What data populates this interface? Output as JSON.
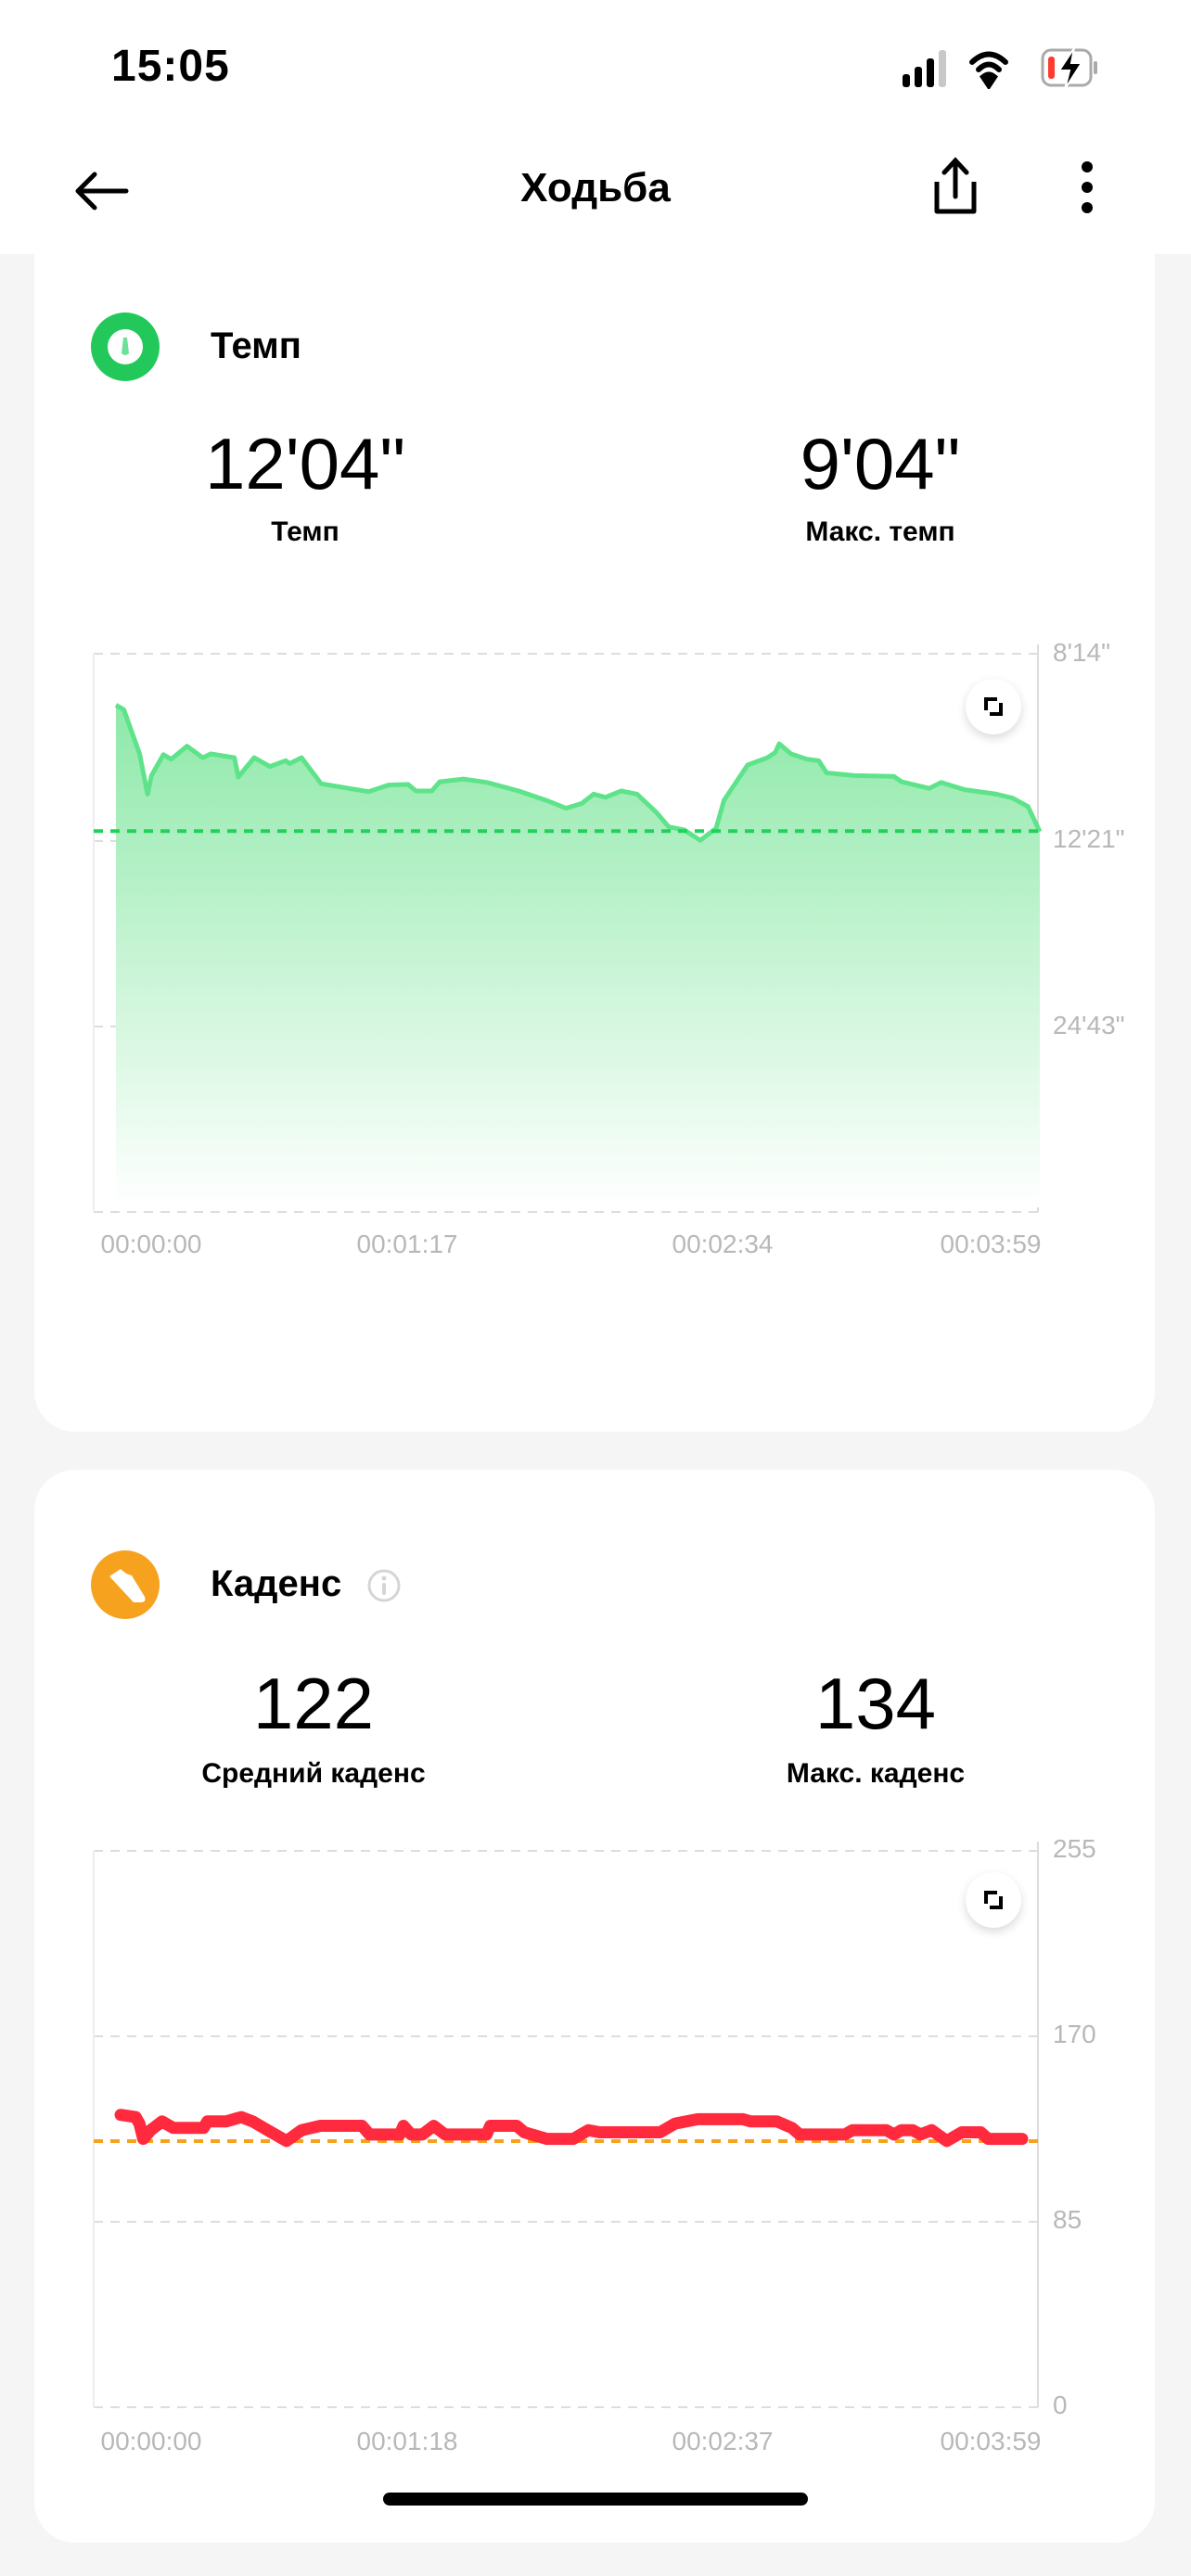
{
  "status_bar": {
    "time": "15:05",
    "icons": [
      "cellular-signal-icon",
      "wifi-icon",
      "battery-charging-icon"
    ],
    "battery_color": "#ff3b30"
  },
  "header": {
    "title": "Ходьба",
    "back_icon": "arrow-left-icon",
    "share_icon": "share-icon",
    "more_icon": "more-vertical-icon"
  },
  "pace_card": {
    "title": "Темп",
    "icon": "speedometer-icon",
    "icon_color": "#22c95a",
    "avg_value": "12'04\"",
    "avg_label": "Темп",
    "max_value": "9'04\"",
    "max_label": "Макс. темп"
  },
  "cadence_card": {
    "title": "Каденс",
    "icon": "shoe-icon",
    "info_icon": "info-icon",
    "icon_color": "#f6a21e",
    "avg_value": "122",
    "avg_label": "Средний каденс",
    "max_value": "134",
    "max_label": "Макс. каденс"
  },
  "chart_data": [
    {
      "type": "area",
      "y_scale": "reciprocal (pace, faster at top)",
      "y_tick_labels": [
        "8'14\"",
        "12'21\"",
        "24'43\""
      ],
      "x_tick_labels": [
        "00:00:00",
        "00:01:17",
        "00:02:34",
        "00:03:59"
      ],
      "x_unit_seconds": true,
      "average_line": "12'04\"",
      "line_color": "#5ee38a",
      "average_color": "#1fd35a",
      "grid": true,
      "points": [
        [
          0,
          "9'04\""
        ],
        [
          2,
          "9'09\""
        ],
        [
          6,
          "10'02\""
        ],
        [
          8,
          "11'00\""
        ],
        [
          9,
          "10'32\""
        ],
        [
          12,
          "10'03\""
        ],
        [
          14,
          "10'09\""
        ],
        [
          18,
          "9'52\""
        ],
        [
          22,
          "10'07\""
        ],
        [
          24,
          "10'02\""
        ],
        [
          30,
          "10'07\""
        ],
        [
          31,
          "10'34\""
        ],
        [
          35,
          "10'07\""
        ],
        [
          39,
          "10'19\""
        ],
        [
          43,
          "10'11\""
        ],
        [
          44,
          "10'15\""
        ],
        [
          47,
          "10'07\""
        ],
        [
          52,
          "10'44\""
        ],
        [
          59,
          "10'51\""
        ],
        [
          64,
          "10'56\""
        ],
        [
          69,
          "10'46\""
        ],
        [
          74,
          "10'45\""
        ],
        [
          76,
          "10'55\""
        ],
        [
          80,
          "10'55\""
        ],
        [
          82,
          "10'41\""
        ],
        [
          88,
          "10'37\""
        ],
        [
          94,
          "10'42\""
        ],
        [
          102,
          "10'55\""
        ],
        [
          109,
          "11'10\""
        ],
        [
          114,
          "11'23\""
        ],
        [
          118,
          "11'15\""
        ],
        [
          121,
          "11'00\""
        ],
        [
          124,
          "11'05\""
        ],
        [
          128,
          "10'55\""
        ],
        [
          132,
          "11'00\""
        ],
        [
          137,
          "11'31\""
        ],
        [
          140,
          "11'56\""
        ],
        [
          144,
          "12'02\""
        ],
        [
          148,
          "12'22\""
        ],
        [
          152,
          "11'59\""
        ],
        [
          154,
          "11'10\""
        ],
        [
          160,
          "10'17\""
        ],
        [
          165,
          "10'07\""
        ],
        [
          167,
          "10'00\""
        ],
        [
          168,
          "9'49\""
        ],
        [
          171,
          "10'02\""
        ],
        [
          175,
          "10'09\""
        ],
        [
          178,
          "10'11\""
        ],
        [
          180,
          "10'28\""
        ],
        [
          187,
          "10'32\""
        ],
        [
          197,
          "10'33\""
        ],
        [
          199,
          "10'41\""
        ],
        [
          206,
          "10'51\""
        ],
        [
          209,
          "10'42\""
        ],
        [
          215,
          "10'53\""
        ],
        [
          223,
          "11'00\""
        ],
        [
          227,
          "11'06\""
        ],
        [
          231,
          "11'20\""
        ],
        [
          234,
          "12'05\""
        ]
      ]
    },
    {
      "type": "line",
      "ylim": [
        0,
        255
      ],
      "y_tick_labels": [
        "255",
        "170",
        "85",
        "0"
      ],
      "x_tick_labels": [
        "00:00:00",
        "00:01:18",
        "00:02:37",
        "00:03:59"
      ],
      "x_unit_seconds": true,
      "average_line": 122,
      "line_color": "#ff2a3d",
      "average_color": "#f6a21e",
      "grid": true,
      "points": [
        [
          0,
          134
        ],
        [
          4,
          133
        ],
        [
          5,
          130
        ],
        [
          6,
          123
        ],
        [
          8,
          127
        ],
        [
          11,
          131
        ],
        [
          14,
          128
        ],
        [
          22,
          128
        ],
        [
          23,
          131
        ],
        [
          28,
          131
        ],
        [
          32,
          133
        ],
        [
          35,
          131
        ],
        [
          39,
          127
        ],
        [
          44,
          122
        ],
        [
          48,
          127
        ],
        [
          53,
          129
        ],
        [
          59,
          129
        ],
        [
          64,
          129
        ],
        [
          66,
          125
        ],
        [
          74,
          125
        ],
        [
          75,
          129
        ],
        [
          77,
          125
        ],
        [
          80,
          125
        ],
        [
          83,
          129
        ],
        [
          86,
          125
        ],
        [
          97,
          125
        ],
        [
          98,
          129
        ],
        [
          105,
          129
        ],
        [
          107,
          126
        ],
        [
          113,
          123
        ],
        [
          120,
          123
        ],
        [
          124,
          127
        ],
        [
          127,
          126
        ],
        [
          143,
          126
        ],
        [
          147,
          130
        ],
        [
          153,
          132
        ],
        [
          165,
          132
        ],
        [
          167,
          131
        ],
        [
          174,
          131
        ],
        [
          178,
          128
        ],
        [
          180,
          125
        ],
        [
          192,
          125
        ],
        [
          194,
          127
        ],
        [
          203,
          127
        ],
        [
          205,
          125
        ],
        [
          207,
          127
        ],
        [
          210,
          127
        ],
        [
          212,
          125
        ],
        [
          215,
          127
        ],
        [
          219,
          122
        ],
        [
          223,
          126
        ],
        [
          228,
          126
        ],
        [
          230,
          123
        ],
        [
          239,
          123
        ]
      ]
    }
  ]
}
